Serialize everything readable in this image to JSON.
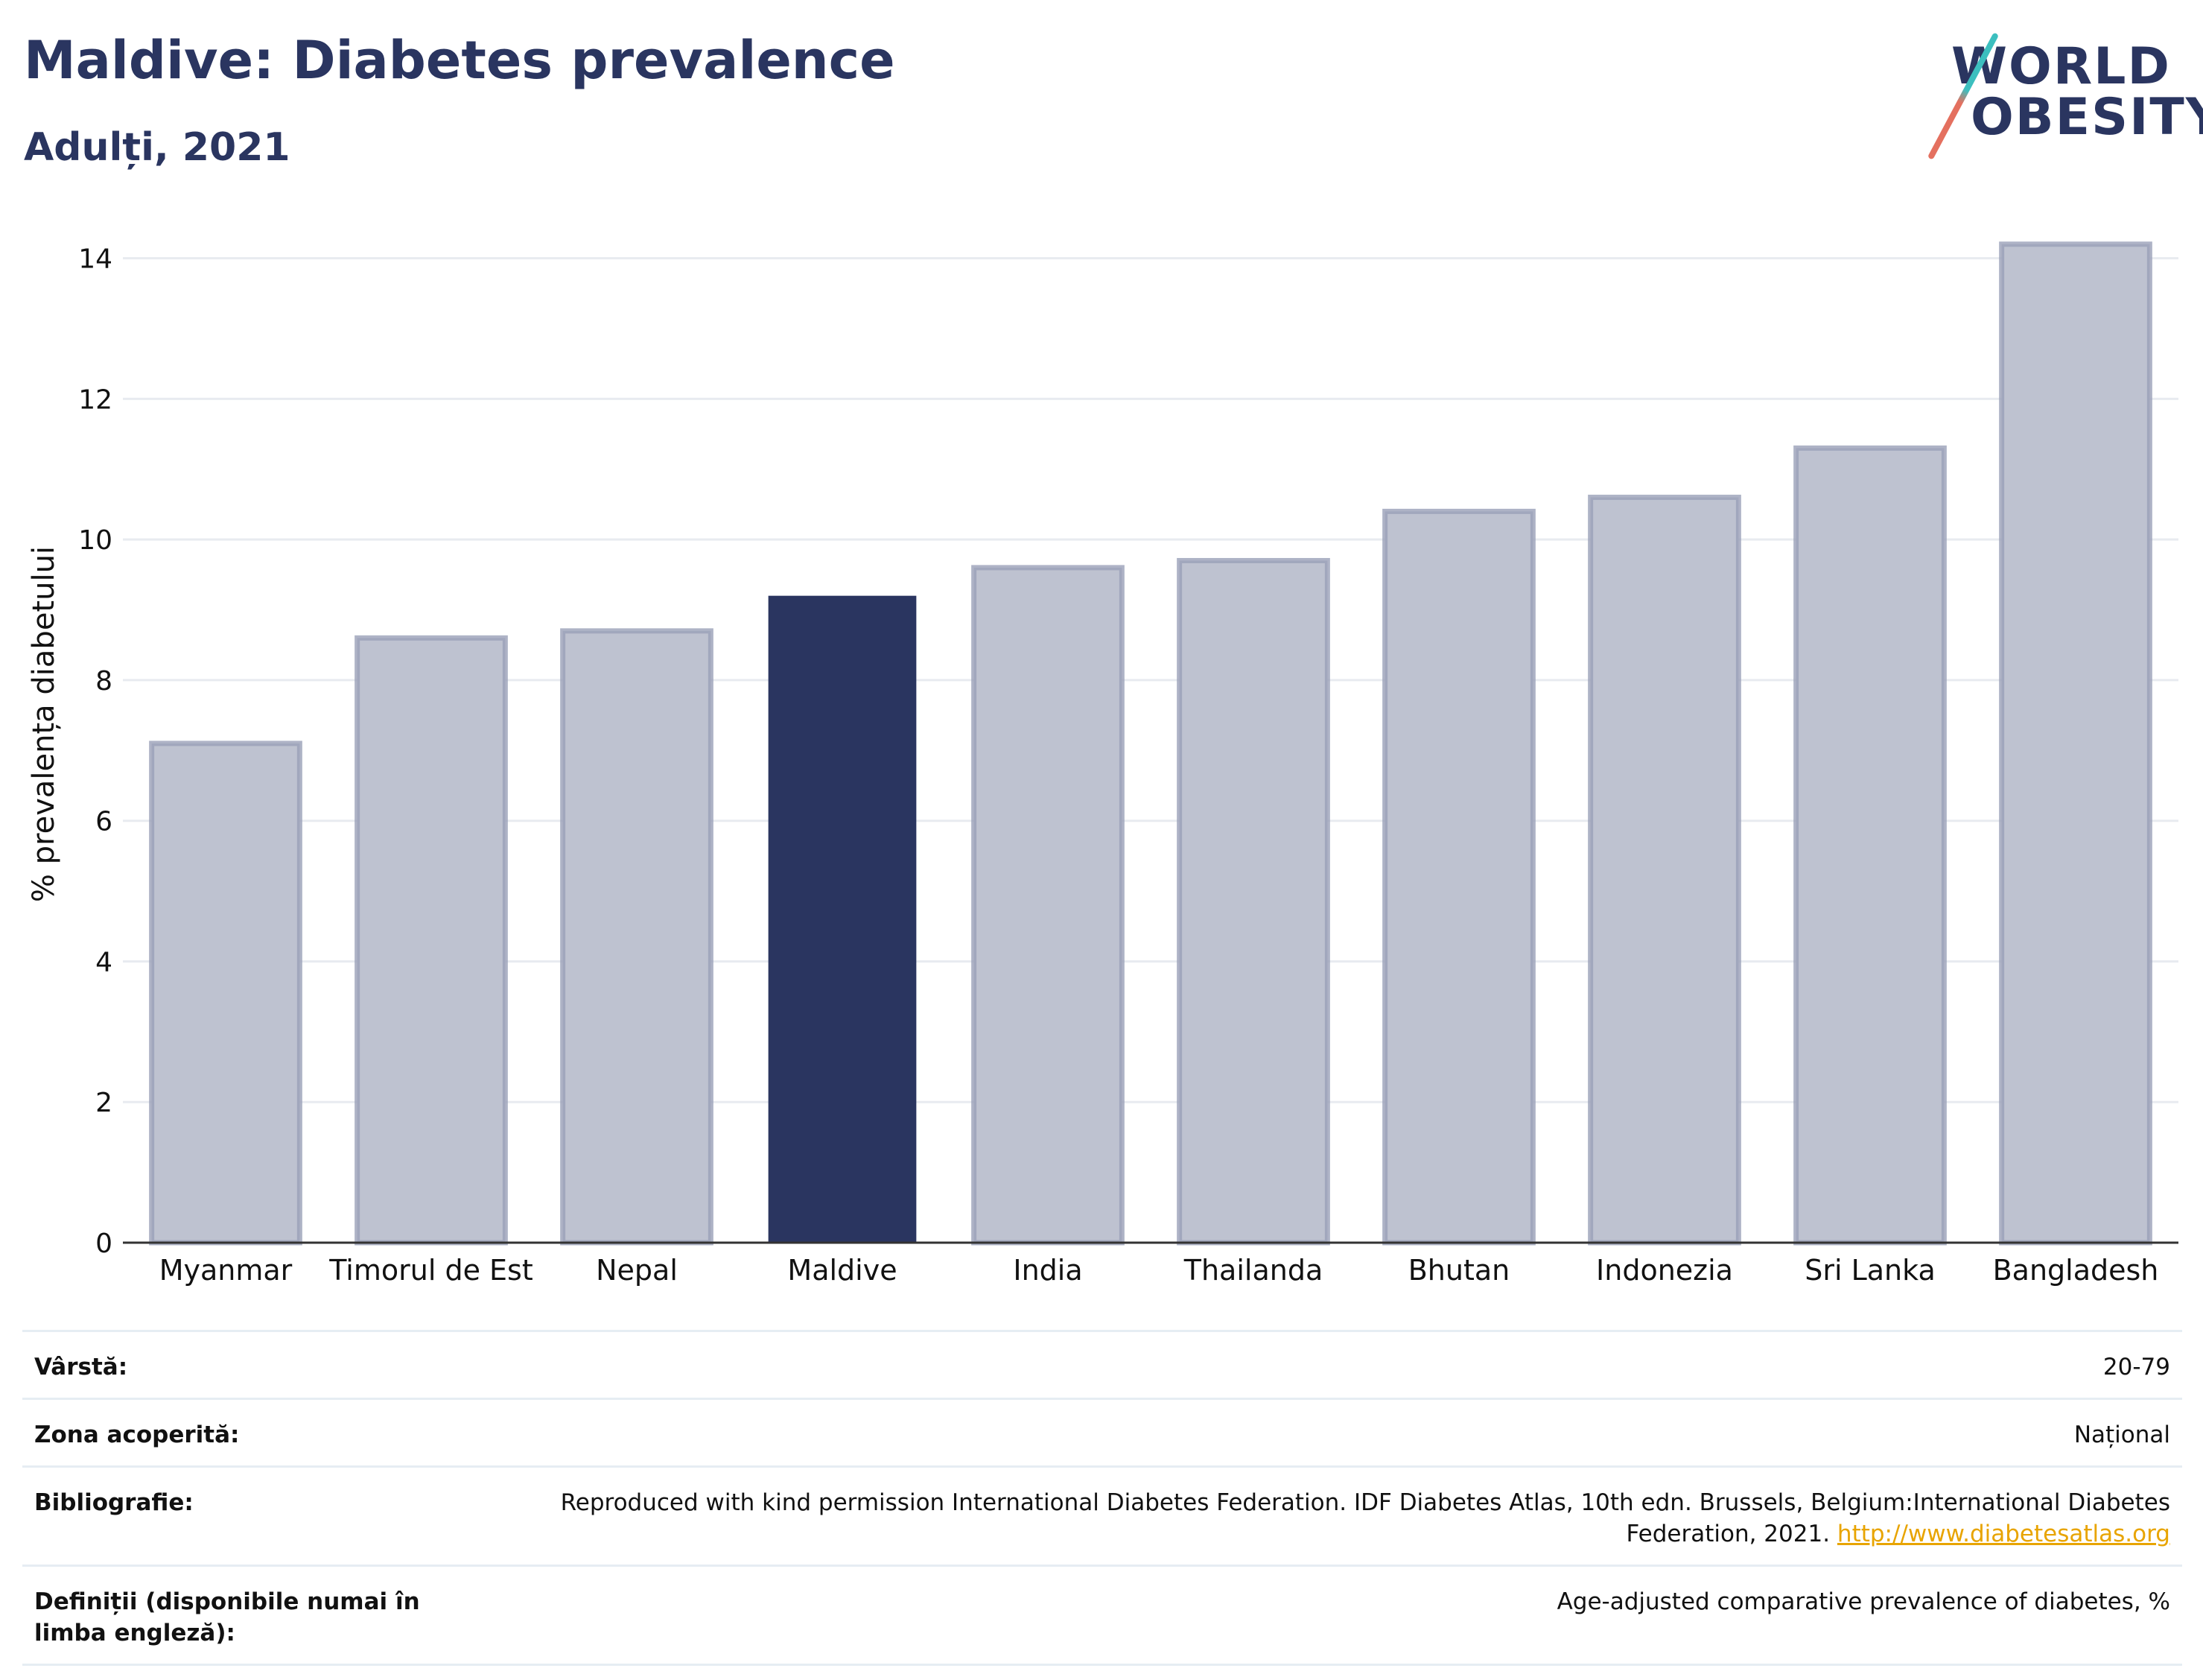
{
  "header": {
    "title": "Maldive: Diabetes prevalence",
    "subtitle": "Adulți, 2021"
  },
  "logo": {
    "line1": "WORLD",
    "line2": "OBESITY",
    "accent_top": "#3cbfbf",
    "accent_bottom": "#e4705f"
  },
  "chart_data": {
    "type": "bar",
    "categories": [
      "Myanmar",
      "Timorul de Est",
      "Nepal",
      "Maldive",
      "India",
      "Thailanda",
      "Bhutan",
      "Indonezia",
      "Sri Lanka",
      "Bangladesh"
    ],
    "values": [
      7.1,
      8.6,
      8.7,
      9.2,
      9.6,
      9.7,
      10.4,
      10.6,
      11.3,
      14.2
    ],
    "highlight": "Maldive",
    "ylabel": "% prevalența diabetului",
    "xlabel": "",
    "ylim": [
      0,
      14.6
    ],
    "yticks": [
      0,
      2,
      4,
      6,
      8,
      10,
      12,
      14
    ],
    "grid": true,
    "colors": {
      "bar": "#bec2d0",
      "bar_border": "#9aa0b8",
      "highlight": "#2a3560",
      "grid": "#e8ebf0",
      "axis": "#333333"
    }
  },
  "info": {
    "rows": [
      {
        "label": "Vârstă:",
        "value": "20-79"
      },
      {
        "label": "Zona acoperită:",
        "value": "Național"
      },
      {
        "label": "Bibliografie:",
        "value": "Reproduced with kind permission International Diabetes Federation.  IDF Diabetes Atlas, 10th edn. Brussels, Belgium:International Diabetes Federation, 2021.",
        "link": "http://www.diabetesatlas.org"
      },
      {
        "label": "Definiții (disponibile numai în limba engleză):",
        "value": "Age-adjusted comparative prevalence of diabetes, %"
      }
    ]
  }
}
